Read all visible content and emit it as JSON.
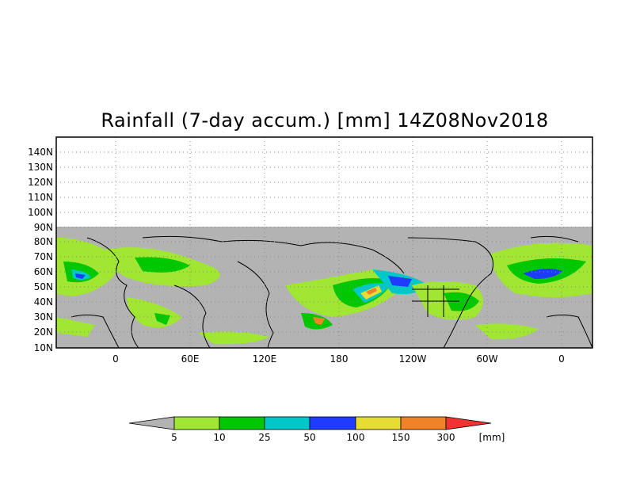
{
  "title": "Rainfall (7-day accum.) [mm] 14Z08Nov2018",
  "map": {
    "lat_labels": [
      "140N",
      "130N",
      "120N",
      "110N",
      "100N",
      "90N",
      "80N",
      "70N",
      "60N",
      "50N",
      "40N",
      "30N",
      "20N",
      "10N"
    ],
    "lon_labels": [
      "0",
      "60E",
      "120E",
      "180",
      "120W",
      "60W",
      "0"
    ]
  },
  "legend": {
    "colors": [
      "#b3b3b3",
      "#a0e632",
      "#00c800",
      "#00c8c8",
      "#1e3cff",
      "#e6dc32",
      "#f08228",
      "#f03232"
    ],
    "thresholds": [
      "5",
      "10",
      "25",
      "50",
      "100",
      "150",
      "300"
    ],
    "unit": "[mm]"
  }
}
